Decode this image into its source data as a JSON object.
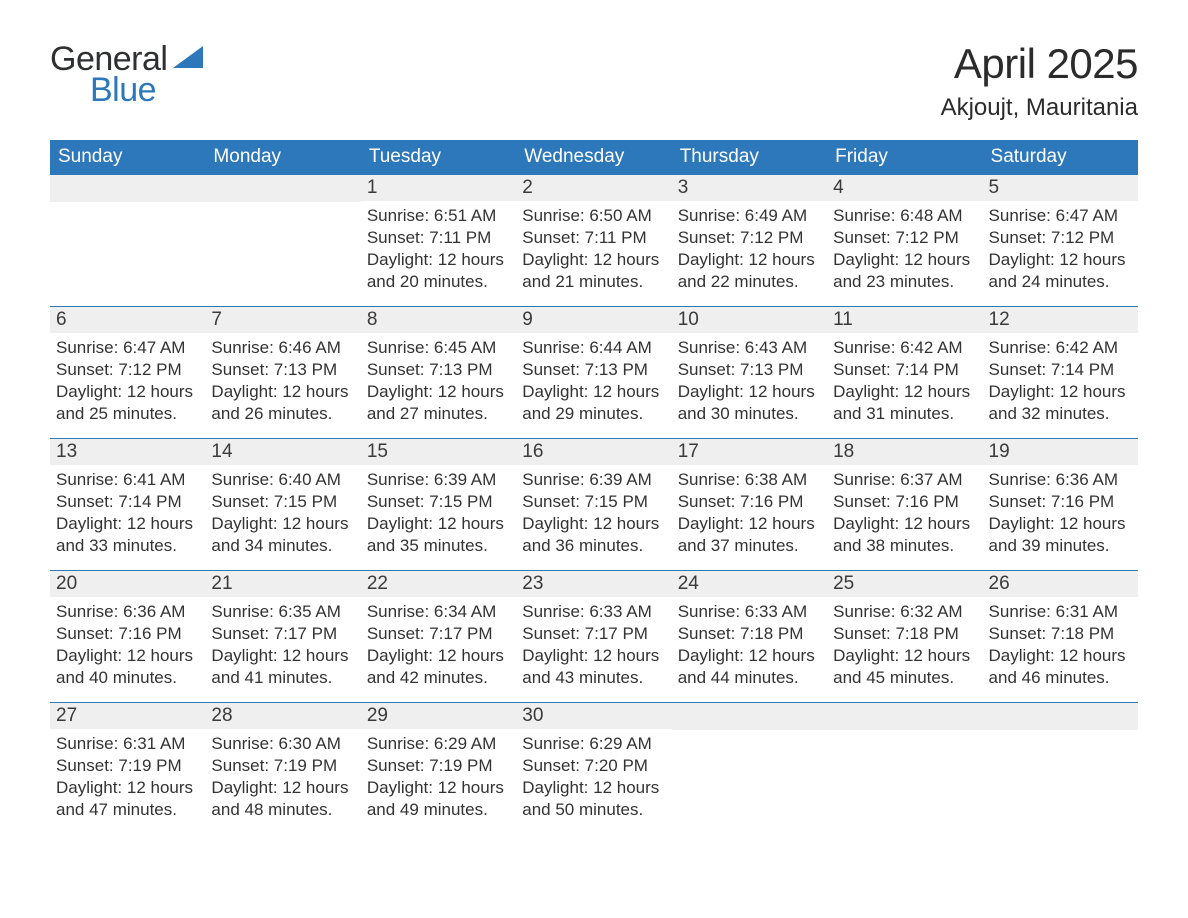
{
  "logo": {
    "word1": "General",
    "word2": "Blue"
  },
  "title": "April 2025",
  "location": "Akjoujt, Mauritania",
  "colors": {
    "header_bg": "#2d77bb",
    "header_text": "#ffffff",
    "daynum_bg": "#efefef",
    "body_text": "#333333",
    "logo_text1": "#2d2f30",
    "logo_text2": "#2d77bb",
    "page_bg": "#ffffff"
  },
  "fontsizes": {
    "title": 42,
    "subtitle": 24,
    "header": 19,
    "daynum": 19,
    "body": 17,
    "logo": 34
  },
  "table": {
    "columns": [
      "Sunday",
      "Monday",
      "Tuesday",
      "Wednesday",
      "Thursday",
      "Friday",
      "Saturday"
    ],
    "col_width_pct": 14.28
  },
  "days": [
    {
      "n": "1",
      "sr": "6:51 AM",
      "ss": "7:11 PM",
      "dl": "12 hours and 20 minutes."
    },
    {
      "n": "2",
      "sr": "6:50 AM",
      "ss": "7:11 PM",
      "dl": "12 hours and 21 minutes."
    },
    {
      "n": "3",
      "sr": "6:49 AM",
      "ss": "7:12 PM",
      "dl": "12 hours and 22 minutes."
    },
    {
      "n": "4",
      "sr": "6:48 AM",
      "ss": "7:12 PM",
      "dl": "12 hours and 23 minutes."
    },
    {
      "n": "5",
      "sr": "6:47 AM",
      "ss": "7:12 PM",
      "dl": "12 hours and 24 minutes."
    },
    {
      "n": "6",
      "sr": "6:47 AM",
      "ss": "7:12 PM",
      "dl": "12 hours and 25 minutes."
    },
    {
      "n": "7",
      "sr": "6:46 AM",
      "ss": "7:13 PM",
      "dl": "12 hours and 26 minutes."
    },
    {
      "n": "8",
      "sr": "6:45 AM",
      "ss": "7:13 PM",
      "dl": "12 hours and 27 minutes."
    },
    {
      "n": "9",
      "sr": "6:44 AM",
      "ss": "7:13 PM",
      "dl": "12 hours and 29 minutes."
    },
    {
      "n": "10",
      "sr": "6:43 AM",
      "ss": "7:13 PM",
      "dl": "12 hours and 30 minutes."
    },
    {
      "n": "11",
      "sr": "6:42 AM",
      "ss": "7:14 PM",
      "dl": "12 hours and 31 minutes."
    },
    {
      "n": "12",
      "sr": "6:42 AM",
      "ss": "7:14 PM",
      "dl": "12 hours and 32 minutes."
    },
    {
      "n": "13",
      "sr": "6:41 AM",
      "ss": "7:14 PM",
      "dl": "12 hours and 33 minutes."
    },
    {
      "n": "14",
      "sr": "6:40 AM",
      "ss": "7:15 PM",
      "dl": "12 hours and 34 minutes."
    },
    {
      "n": "15",
      "sr": "6:39 AM",
      "ss": "7:15 PM",
      "dl": "12 hours and 35 minutes."
    },
    {
      "n": "16",
      "sr": "6:39 AM",
      "ss": "7:15 PM",
      "dl": "12 hours and 36 minutes."
    },
    {
      "n": "17",
      "sr": "6:38 AM",
      "ss": "7:16 PM",
      "dl": "12 hours and 37 minutes."
    },
    {
      "n": "18",
      "sr": "6:37 AM",
      "ss": "7:16 PM",
      "dl": "12 hours and 38 minutes."
    },
    {
      "n": "19",
      "sr": "6:36 AM",
      "ss": "7:16 PM",
      "dl": "12 hours and 39 minutes."
    },
    {
      "n": "20",
      "sr": "6:36 AM",
      "ss": "7:16 PM",
      "dl": "12 hours and 40 minutes."
    },
    {
      "n": "21",
      "sr": "6:35 AM",
      "ss": "7:17 PM",
      "dl": "12 hours and 41 minutes."
    },
    {
      "n": "22",
      "sr": "6:34 AM",
      "ss": "7:17 PM",
      "dl": "12 hours and 42 minutes."
    },
    {
      "n": "23",
      "sr": "6:33 AM",
      "ss": "7:17 PM",
      "dl": "12 hours and 43 minutes."
    },
    {
      "n": "24",
      "sr": "6:33 AM",
      "ss": "7:18 PM",
      "dl": "12 hours and 44 minutes."
    },
    {
      "n": "25",
      "sr": "6:32 AM",
      "ss": "7:18 PM",
      "dl": "12 hours and 45 minutes."
    },
    {
      "n": "26",
      "sr": "6:31 AM",
      "ss": "7:18 PM",
      "dl": "12 hours and 46 minutes."
    },
    {
      "n": "27",
      "sr": "6:31 AM",
      "ss": "7:19 PM",
      "dl": "12 hours and 47 minutes."
    },
    {
      "n": "28",
      "sr": "6:30 AM",
      "ss": "7:19 PM",
      "dl": "12 hours and 48 minutes."
    },
    {
      "n": "29",
      "sr": "6:29 AM",
      "ss": "7:19 PM",
      "dl": "12 hours and 49 minutes."
    },
    {
      "n": "30",
      "sr": "6:29 AM",
      "ss": "7:20 PM",
      "dl": "12 hours and 50 minutes."
    }
  ],
  "labels": {
    "sunrise": "Sunrise:",
    "sunset": "Sunset:",
    "daylight": "Daylight:"
  },
  "layout": {
    "first_day_column": 2,
    "weeks": 5
  }
}
